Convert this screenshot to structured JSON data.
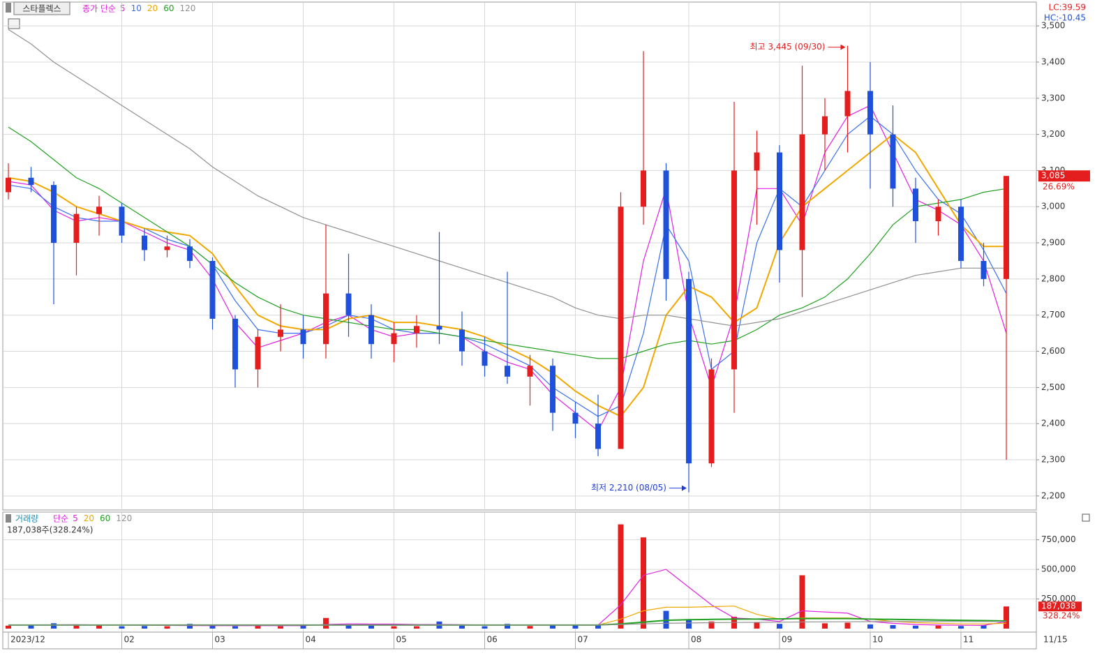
{
  "chart_data": [
    {
      "type": "candlestick",
      "title": "스타플렉스",
      "legend_title": "종가 단순",
      "info": [
        "LC:39.59",
        "HC:-10.45"
      ],
      "categories": [
        "2023/12",
        null,
        null,
        null,
        null,
        "02",
        null,
        null,
        null,
        "03",
        null,
        null,
        null,
        "04",
        null,
        null,
        null,
        "05",
        null,
        null,
        null,
        "06",
        null,
        null,
        null,
        "07",
        null,
        null,
        null,
        null,
        "08",
        null,
        null,
        null,
        "09",
        null,
        null,
        null,
        "10",
        null,
        null,
        null,
        "11",
        null,
        null
      ],
      "x_end_label": "11/15",
      "open": [
        3040,
        3080,
        3060,
        2900,
        2980,
        3000,
        2920,
        2880,
        2890,
        2850,
        2690,
        2550,
        2640,
        2660,
        2620,
        2760,
        2700,
        2620,
        2650,
        2670,
        2660,
        2600,
        2560,
        2530,
        2560,
        2430,
        2400,
        2330,
        3000,
        3100,
        2800,
        2290,
        2550,
        3100,
        3150,
        2880,
        3200,
        3250,
        3320,
        3200,
        3050,
        2960,
        3000,
        2850,
        2800
      ],
      "high": [
        3120,
        3110,
        3070,
        3000,
        3030,
        3010,
        2940,
        2920,
        2910,
        2860,
        2700,
        2660,
        2730,
        2700,
        2950,
        2870,
        2730,
        2680,
        2700,
        2930,
        2710,
        2640,
        2820,
        2590,
        2580,
        2460,
        2480,
        3040,
        3430,
        3120,
        2820,
        2580,
        3290,
        3210,
        3170,
        3390,
        3300,
        3445,
        3400,
        3280,
        3080,
        3020,
        3020,
        2900,
        3085
      ],
      "low": [
        3020,
        3040,
        2730,
        2810,
        2920,
        2900,
        2850,
        2860,
        2830,
        2660,
        2500,
        2500,
        2600,
        2580,
        2580,
        2640,
        2580,
        2570,
        2610,
        2620,
        2560,
        2530,
        2510,
        2450,
        2380,
        2360,
        2310,
        2330,
        2950,
        2740,
        2210,
        2280,
        2430,
        2950,
        2790,
        2750,
        3100,
        3150,
        3050,
        3000,
        2900,
        2920,
        2830,
        2780,
        2300
      ],
      "close": [
        3080,
        3060,
        2900,
        2980,
        3000,
        2920,
        2880,
        2890,
        2850,
        2690,
        2550,
        2640,
        2660,
        2620,
        2760,
        2700,
        2620,
        2650,
        2670,
        2660,
        2600,
        2560,
        2530,
        2560,
        2430,
        2400,
        2330,
        3000,
        3100,
        2800,
        2290,
        2550,
        3100,
        3150,
        2880,
        3200,
        3250,
        3320,
        3200,
        3050,
        2960,
        3000,
        2850,
        2800,
        3085
      ],
      "series": [
        {
          "name": "5",
          "color": "#e020e0",
          "values": [
            3070,
            3060,
            2990,
            2960,
            2970,
            2960,
            2930,
            2900,
            2880,
            2800,
            2680,
            2610,
            2630,
            2650,
            2680,
            2700,
            2660,
            2640,
            2650,
            2650,
            2640,
            2600,
            2570,
            2550,
            2480,
            2430,
            2380,
            2500,
            2850,
            3050,
            2700,
            2500,
            2700,
            3050,
            3050,
            2950,
            3150,
            3250,
            3280,
            3150,
            3020,
            2990,
            2950,
            2850,
            2650
          ]
        },
        {
          "name": "10",
          "color": "#3a6ff0",
          "values": [
            3060,
            3050,
            3000,
            2970,
            2960,
            2960,
            2940,
            2910,
            2890,
            2840,
            2740,
            2660,
            2650,
            2650,
            2670,
            2700,
            2690,
            2660,
            2650,
            2650,
            2640,
            2620,
            2590,
            2560,
            2500,
            2460,
            2420,
            2450,
            2650,
            2950,
            2850,
            2550,
            2600,
            2900,
            3050,
            3000,
            3100,
            3200,
            3250,
            3200,
            3100,
            3020,
            2980,
            2880,
            2760
          ]
        },
        {
          "name": "20",
          "color": "#f0a800",
          "values": [
            3080,
            3070,
            3040,
            3000,
            2980,
            2960,
            2940,
            2930,
            2920,
            2870,
            2780,
            2700,
            2670,
            2660,
            2660,
            2690,
            2700,
            2680,
            2680,
            2670,
            2660,
            2640,
            2610,
            2580,
            2540,
            2490,
            2450,
            2420,
            2500,
            2700,
            2780,
            2750,
            2680,
            2720,
            2900,
            3000,
            3050,
            3100,
            3150,
            3200,
            3150,
            3050,
            2950,
            2890,
            2890
          ]
        },
        {
          "name": "60",
          "color": "#20a020",
          "values": [
            3220,
            3180,
            3130,
            3080,
            3050,
            3010,
            2970,
            2930,
            2890,
            2840,
            2790,
            2750,
            2720,
            2700,
            2690,
            2680,
            2670,
            2660,
            2660,
            2650,
            2640,
            2630,
            2620,
            2610,
            2600,
            2590,
            2580,
            2580,
            2600,
            2620,
            2630,
            2620,
            2630,
            2660,
            2700,
            2720,
            2750,
            2800,
            2870,
            2950,
            3000,
            3010,
            3020,
            3040,
            3050
          ]
        },
        {
          "name": "120",
          "color": "#909090",
          "values": [
            3490,
            3450,
            3400,
            3360,
            3320,
            3280,
            3240,
            3200,
            3160,
            3110,
            3070,
            3030,
            3000,
            2970,
            2950,
            2930,
            2910,
            2890,
            2870,
            2850,
            2830,
            2810,
            2790,
            2770,
            2750,
            2720,
            2700,
            2690,
            2700,
            2700,
            2690,
            2680,
            2670,
            2680,
            2690,
            2710,
            2730,
            2750,
            2770,
            2790,
            2810,
            2820,
            2830,
            2830,
            2830
          ]
        }
      ],
      "up_color": "#e41e1e",
      "down_color": "#1e50dc",
      "ylim": [
        2163,
        3562
      ],
      "yticks": [
        {
          "value": 2200,
          "label": "2,200"
        },
        {
          "value": 2300,
          "label": "2,300"
        },
        {
          "value": 2400,
          "label": "2,400"
        },
        {
          "value": 2500,
          "label": "2,500"
        },
        {
          "value": 2600,
          "label": "2,600"
        },
        {
          "value": 2700,
          "label": "2,700"
        },
        {
          "value": 2800,
          "label": "2,800"
        },
        {
          "value": 2900,
          "label": "2,900"
        },
        {
          "value": 3000,
          "label": "3,000"
        },
        {
          "value": 3100,
          "label": "3,100"
        },
        {
          "value": 3200,
          "label": "3,200"
        },
        {
          "value": 3300,
          "label": "3,300"
        },
        {
          "value": 3400,
          "label": "3,400"
        },
        {
          "value": 3500,
          "label": "3,500"
        }
      ],
      "grid": true,
      "last_price": {
        "value": 3085,
        "label": "3,085"
      },
      "last_change": {
        "value": 26.69,
        "label": "26.69%"
      },
      "annotations": [
        {
          "text": "최고 3,445 (09/30)",
          "value": 3445,
          "color": "#e41e1e"
        },
        {
          "text": "최저 2,210 (08/05)",
          "value": 2210,
          "color": "#1e3cdc"
        }
      ]
    },
    {
      "type": "bar",
      "title": "거래량",
      "legend_title": "단순",
      "current": "187,038주(328.24%)",
      "values": [
        25000,
        30000,
        45000,
        25000,
        30000,
        20000,
        22000,
        20000,
        40000,
        25000,
        20000,
        22000,
        20000,
        25000,
        90000,
        35000,
        25000,
        20000,
        20000,
        60000,
        25000,
        20000,
        40000,
        22000,
        30000,
        28000,
        35000,
        880000,
        770000,
        150000,
        80000,
        60000,
        100000,
        50000,
        40000,
        450000,
        45000,
        50000,
        35000,
        30000,
        25000,
        25000,
        22000,
        30000,
        187038
      ],
      "series": [
        {
          "name": "5",
          "color": "#e020e0",
          "values": [
            30000,
            30000,
            32000,
            33000,
            31000,
            30000,
            28000,
            27000,
            26000,
            25000,
            25000,
            25000,
            25000,
            25000,
            35000,
            40000,
            38000,
            38000,
            35000,
            35000,
            33000,
            30000,
            30000,
            30000,
            30000,
            30000,
            30000,
            200000,
            450000,
            500000,
            350000,
            200000,
            90000,
            80000,
            60000,
            150000,
            140000,
            130000,
            60000,
            45000,
            35000,
            30000,
            28000,
            27000,
            60000
          ]
        },
        {
          "name": "20",
          "color": "#f0a800",
          "values": [
            30000,
            30000,
            30000,
            30000,
            30000,
            30000,
            30000,
            30000,
            30000,
            30000,
            30000,
            30000,
            30000,
            30000,
            30000,
            30000,
            30000,
            30000,
            30000,
            30000,
            30000,
            30000,
            30000,
            30000,
            30000,
            30000,
            30000,
            80000,
            150000,
            180000,
            180000,
            185000,
            190000,
            120000,
            80000,
            90000,
            90000,
            90000,
            80000,
            60000,
            50000,
            45000,
            40000,
            40000,
            45000
          ]
        },
        {
          "name": "60",
          "color": "#20a020",
          "values": [
            30000,
            30000,
            30000,
            30000,
            30000,
            30000,
            30000,
            30000,
            30000,
            30000,
            30000,
            30000,
            30000,
            30000,
            30000,
            30000,
            30000,
            30000,
            30000,
            30000,
            30000,
            30000,
            30000,
            30000,
            30000,
            30000,
            30000,
            40000,
            55000,
            70000,
            75000,
            78000,
            80000,
            80000,
            82000,
            85000,
            85000,
            85000,
            80000,
            78000,
            75000,
            72000,
            70000,
            68000,
            65000
          ]
        },
        {
          "name": "120",
          "color": "#909090",
          "values": [
            30000,
            30000,
            30000,
            30000,
            30000,
            30000,
            30000,
            30000,
            30000,
            30000,
            30000,
            30000,
            30000,
            30000,
            30000,
            30000,
            30000,
            30000,
            30000,
            30000,
            30000,
            30000,
            30000,
            30000,
            30000,
            30000,
            30000,
            35000,
            40000,
            45000,
            48000,
            50000,
            52000,
            53000,
            54000,
            56000,
            57000,
            58000,
            59000,
            60000,
            60000,
            60000,
            60000,
            60000,
            60000
          ]
        }
      ],
      "ylim": [
        0,
        960000
      ],
      "yticks": [
        {
          "value": 250000,
          "label": "250,000"
        },
        {
          "value": 500000,
          "label": "500,000"
        },
        {
          "value": 750000,
          "label": "750,000"
        }
      ],
      "grid": true,
      "last_volume": {
        "value": 187038,
        "label": "187,038"
      },
      "last_change": {
        "value": 328.24,
        "label": "328.24%"
      }
    }
  ]
}
